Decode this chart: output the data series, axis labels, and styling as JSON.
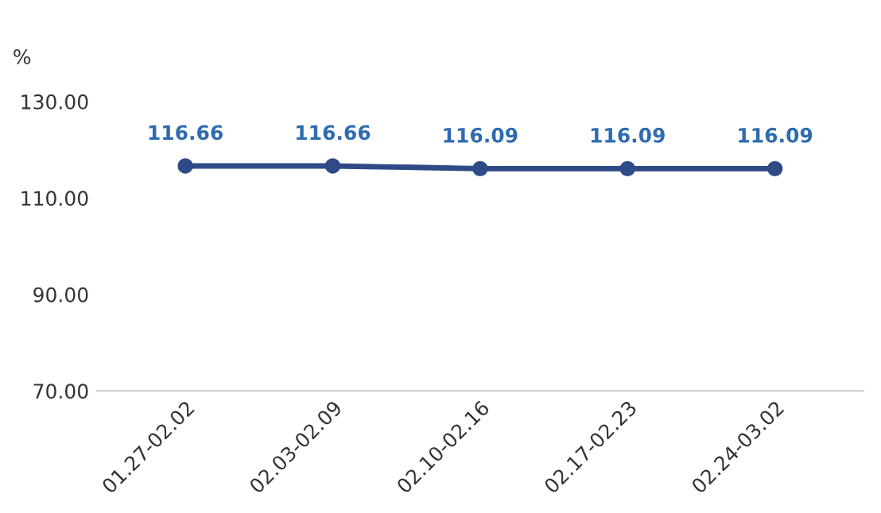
{
  "chart_data": {
    "type": "line",
    "ylabel": "%",
    "categories": [
      "01.27-02.02",
      "02.03-02.09",
      "02.10-02.16",
      "02.17-02.23",
      "02.24-03.02"
    ],
    "series": [
      {
        "color": "#2e4a87",
        "values": [
          116.66,
          116.66,
          116.09,
          116.09,
          116.09
        ]
      }
    ],
    "ylim": [
      70,
      130
    ],
    "yticks": [
      {
        "value": 70,
        "label": "70.00"
      },
      {
        "value": 90,
        "label": "90.00"
      },
      {
        "value": 110,
        "label": "110.00"
      },
      {
        "value": 130,
        "label": "130.00"
      }
    ],
    "data_labels": true,
    "marker": "circle",
    "line_style": "solid",
    "grid": false,
    "legend": false
  }
}
